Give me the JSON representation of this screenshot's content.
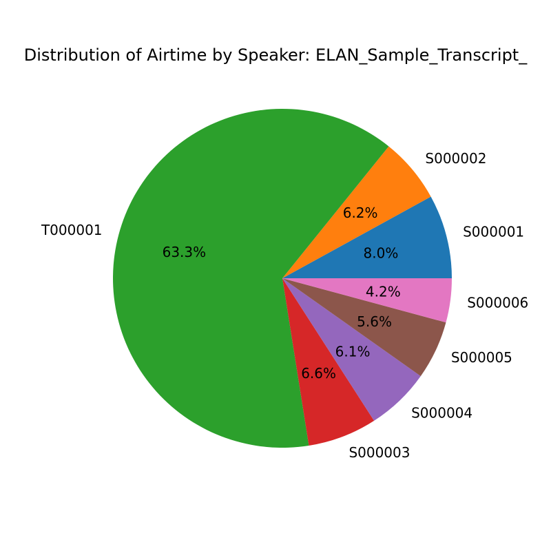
{
  "chart_data": {
    "type": "pie",
    "title": "Distribution of Airtime by Speaker: ELAN_Sample_Transcript_",
    "start_angle_deg": 0,
    "direction": "counterclockwise",
    "slices": [
      {
        "label": "S000001",
        "value": 8.0,
        "pct_label": "8.0%",
        "color": "#1f77b4"
      },
      {
        "label": "S000002",
        "value": 6.2,
        "pct_label": "6.2%",
        "color": "#ff7f0e"
      },
      {
        "label": "T000001",
        "value": 63.3,
        "pct_label": "63.3%",
        "color": "#2ca02c"
      },
      {
        "label": "S000003",
        "value": 6.6,
        "pct_label": "6.6%",
        "color": "#d62728"
      },
      {
        "label": "S000004",
        "value": 6.1,
        "pct_label": "6.1%",
        "color": "#9467bd"
      },
      {
        "label": "S000005",
        "value": 5.6,
        "pct_label": "5.6%",
        "color": "#8c564b"
      },
      {
        "label": "S000006",
        "value": 4.2,
        "pct_label": "4.2%",
        "color": "#e377c2"
      }
    ]
  }
}
